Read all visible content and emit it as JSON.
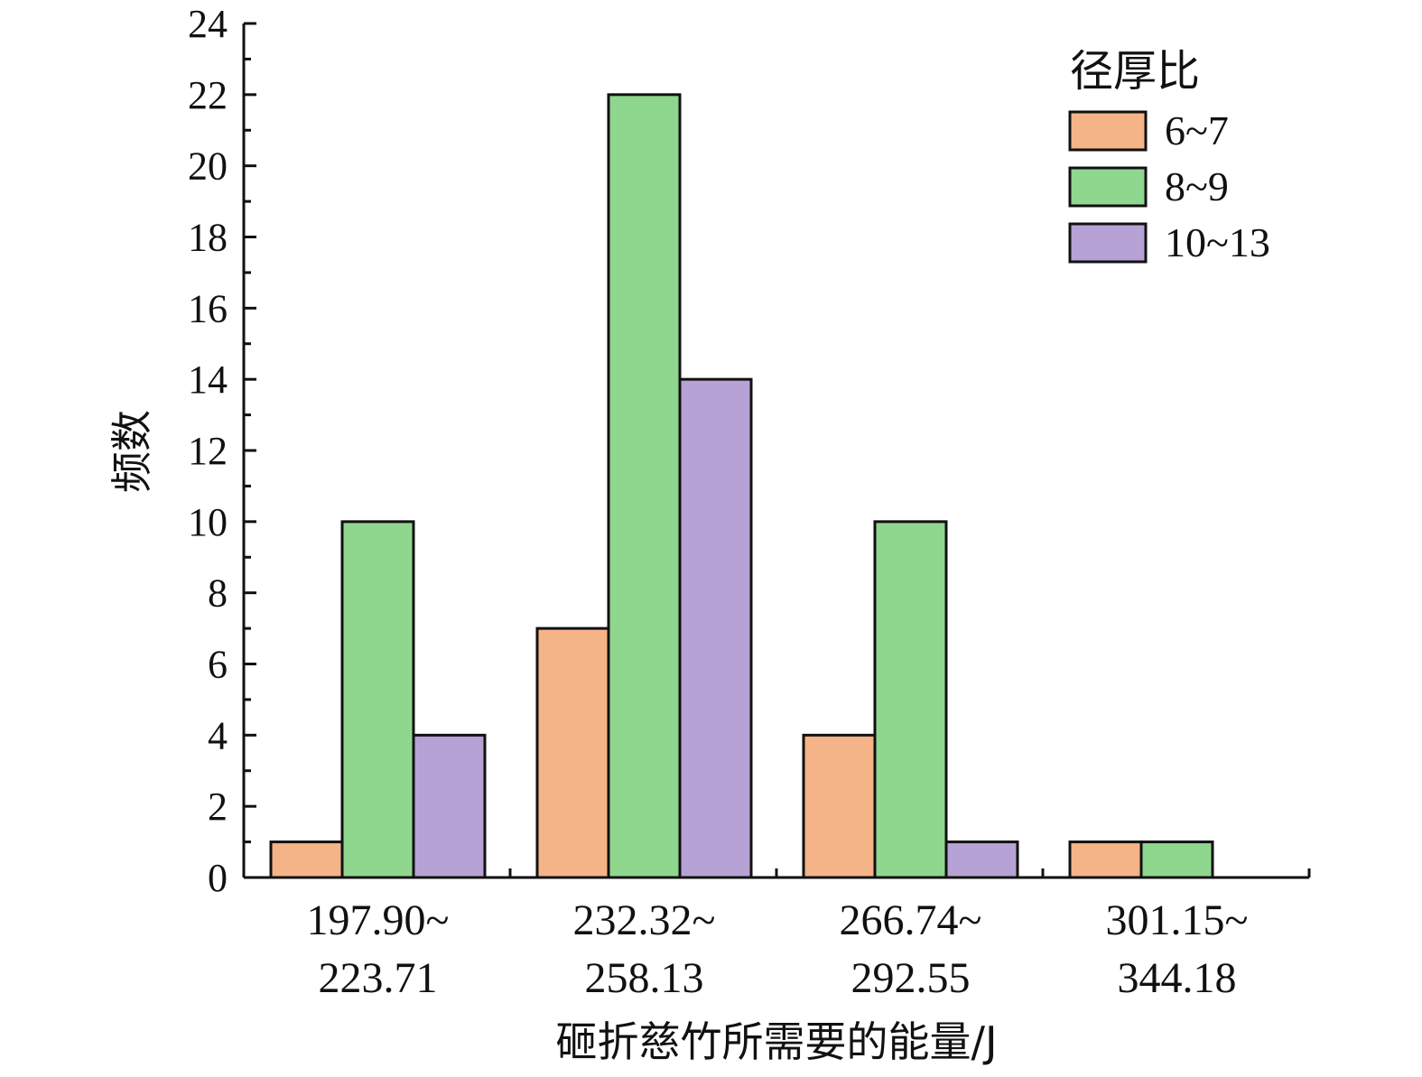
{
  "chart_data": {
    "type": "bar",
    "categories": [
      [
        "197.90~",
        "223.71"
      ],
      [
        "232.32~",
        "258.13"
      ],
      [
        "266.74~",
        "292.55"
      ],
      [
        "301.15~",
        "344.18"
      ]
    ],
    "series": [
      {
        "name": "6~7",
        "values": [
          1,
          7,
          4,
          1
        ],
        "color": "#F5B487"
      },
      {
        "name": "8~9",
        "values": [
          10,
          22,
          10,
          1
        ],
        "color": "#8FD68E"
      },
      {
        "name": "10~13",
        "values": [
          4,
          14,
          1,
          0
        ],
        "color": "#B6A2D4"
      }
    ],
    "legend_title": "径厚比",
    "legend_position": "top-right",
    "xlabel": "砸折慈竹所需要的能量/J",
    "ylabel": "频数",
    "ylim": [
      0,
      24
    ],
    "yticks": [
      0,
      2,
      4,
      6,
      8,
      10,
      12,
      14,
      16,
      18,
      20,
      22,
      24
    ],
    "grid": false
  }
}
